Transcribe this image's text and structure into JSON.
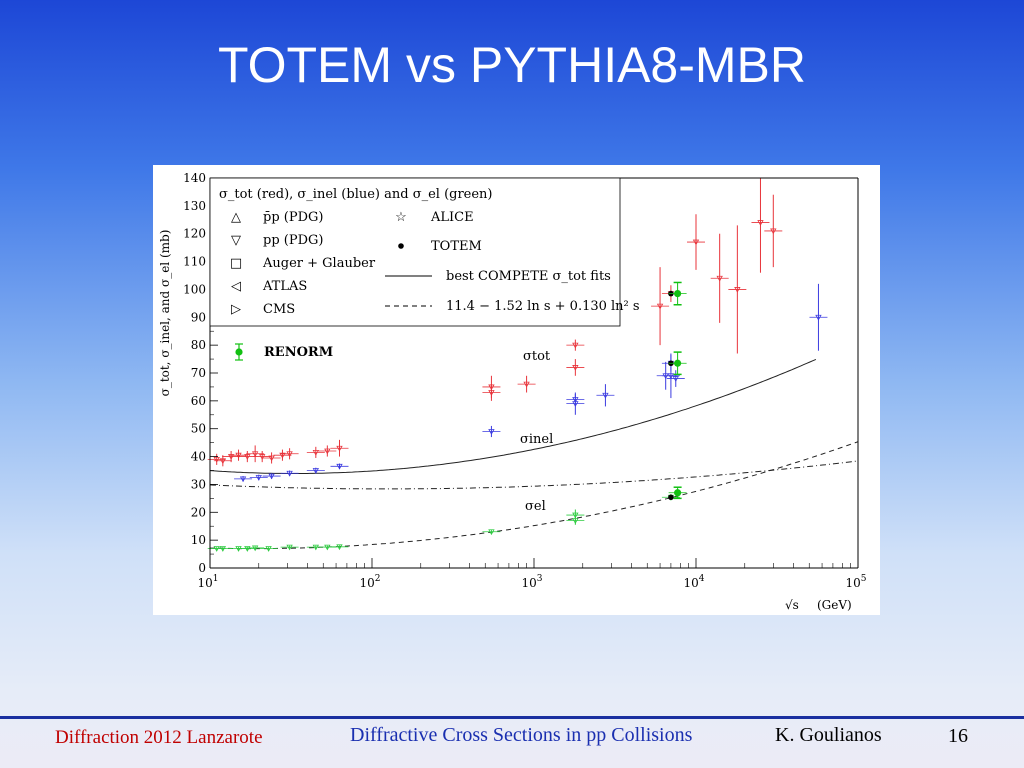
{
  "slide": {
    "title": "TOTEM vs PYTHIA8-MBR",
    "footer_left": "Diffraction 2012 Lanzarote",
    "footer_center": "Diffractive Cross Sections in pp Collisions",
    "footer_author": "K. Goulianos",
    "page_number": "16"
  },
  "chart_data": {
    "type": "scatter",
    "xscale": "log",
    "xlim": [
      10,
      100000
    ],
    "ylim": [
      0,
      140
    ],
    "xlabel_text": "√s",
    "xlabel_unit": "(GeV)",
    "ylabel": "σ_tot, σ_inel, and σ_el (mb)",
    "yticks": [
      "0",
      "10",
      "20",
      "30",
      "40",
      "50",
      "60",
      "70",
      "80",
      "90",
      "100",
      "110",
      "120",
      "130",
      "140"
    ],
    "xticks": [
      {
        "base": "10",
        "exp": "1"
      },
      {
        "base": "10",
        "exp": "2"
      },
      {
        "base": "10",
        "exp": "3"
      },
      {
        "base": "10",
        "exp": "4"
      },
      {
        "base": "10",
        "exp": "5"
      }
    ],
    "legend": {
      "title": "σ_tot (red), σ_inel (blue) and σ_el (green)",
      "entries": [
        {
          "marker": "△",
          "label": "p̄p (PDG)"
        },
        {
          "marker": "▽",
          "label": "pp (PDG)"
        },
        {
          "marker": "□",
          "label": "Auger + Glauber"
        },
        {
          "marker": "◁",
          "label": "ATLAS"
        },
        {
          "marker": "▷",
          "label": "CMS"
        },
        {
          "marker": "☆",
          "label": "ALICE"
        },
        {
          "marker": "●",
          "label": "TOTEM"
        },
        {
          "marker": "line",
          "label": "best COMPETE σ_tot fits"
        },
        {
          "marker": "dash",
          "label": "11.4 − 1.52 ln s + 0.130 ln² s"
        }
      ],
      "placement": "top-left"
    },
    "renorm_label": "RENORM",
    "curve_labels": {
      "tot": "σtot",
      "inel": "σinel",
      "el": "σel"
    },
    "colors": {
      "tot": "#e8333a",
      "inel": "#3b3be0",
      "el": "#2ecc40",
      "renorm": "#12c012",
      "curve": "#222222"
    },
    "series": [
      {
        "name": "σ_tot",
        "points": [
          {
            "x": 11,
            "y": 39,
            "err": 2
          },
          {
            "x": 12,
            "y": 38.5,
            "err": 2
          },
          {
            "x": 13.5,
            "y": 40,
            "err": 2
          },
          {
            "x": 15,
            "y": 40.5,
            "err": 2
          },
          {
            "x": 17,
            "y": 40,
            "err": 2
          },
          {
            "x": 19,
            "y": 41,
            "err": 3
          },
          {
            "x": 21,
            "y": 40,
            "err": 2
          },
          {
            "x": 24,
            "y": 39.5,
            "err": 2
          },
          {
            "x": 28,
            "y": 40.5,
            "err": 2
          },
          {
            "x": 31,
            "y": 41,
            "err": 2
          },
          {
            "x": 45,
            "y": 41.5,
            "err": 2
          },
          {
            "x": 53,
            "y": 42,
            "err": 2
          },
          {
            "x": 63,
            "y": 43,
            "err": 3
          },
          {
            "x": 546,
            "y": 63,
            "err": 3
          },
          {
            "x": 546,
            "y": 65,
            "err": 4
          },
          {
            "x": 900,
            "y": 66,
            "err": 3
          },
          {
            "x": 1800,
            "y": 72,
            "err": 3
          },
          {
            "x": 1800,
            "y": 80,
            "err": 2
          },
          {
            "x": 6000,
            "y": 94,
            "err": 14
          },
          {
            "x": 7000,
            "y": 98.5,
            "err": 3
          },
          {
            "x": 10000,
            "y": 117,
            "err": 10
          },
          {
            "x": 14000,
            "y": 104,
            "err": 16
          },
          {
            "x": 18000,
            "y": 100,
            "err": 23
          },
          {
            "x": 25000,
            "y": 124,
            "err": 18
          },
          {
            "x": 30000,
            "y": 121,
            "err": 13
          }
        ]
      },
      {
        "name": "σ_inel",
        "points": [
          {
            "x": 16,
            "y": 32,
            "err": 1
          },
          {
            "x": 20,
            "y": 32.5,
            "err": 1
          },
          {
            "x": 24,
            "y": 33,
            "err": 1
          },
          {
            "x": 31,
            "y": 34,
            "err": 1
          },
          {
            "x": 45,
            "y": 35,
            "err": 1
          },
          {
            "x": 63,
            "y": 36.5,
            "err": 1
          },
          {
            "x": 546,
            "y": 49,
            "err": 2
          },
          {
            "x": 1800,
            "y": 59,
            "err": 4
          },
          {
            "x": 1800,
            "y": 60.5,
            "err": 2
          },
          {
            "x": 2760,
            "y": 62,
            "err": 4
          },
          {
            "x": 6500,
            "y": 69,
            "err": 5
          },
          {
            "x": 7000,
            "y": 69,
            "err": 8
          },
          {
            "x": 7000,
            "y": 73.5,
            "err": 3
          },
          {
            "x": 7500,
            "y": 68,
            "err": 3
          },
          {
            "x": 57000,
            "y": 90,
            "err": 12
          }
        ]
      },
      {
        "name": "σ_el",
        "points": [
          {
            "x": 11,
            "y": 7,
            "err": 0.5
          },
          {
            "x": 12,
            "y": 7,
            "err": 0.5
          },
          {
            "x": 15,
            "y": 7,
            "err": 0.5
          },
          {
            "x": 17,
            "y": 7,
            "err": 0.5
          },
          {
            "x": 19,
            "y": 7.2,
            "err": 0.5
          },
          {
            "x": 23,
            "y": 7,
            "err": 0.5
          },
          {
            "x": 31,
            "y": 7.5,
            "err": 0.5
          },
          {
            "x": 45,
            "y": 7.5,
            "err": 0.5
          },
          {
            "x": 53,
            "y": 7.5,
            "err": 0.5
          },
          {
            "x": 63,
            "y": 7.6,
            "err": 0.5
          },
          {
            "x": 546,
            "y": 13,
            "err": 0.6
          },
          {
            "x": 1800,
            "y": 19,
            "err": 2
          },
          {
            "x": 1800,
            "y": 17,
            "err": 1.5
          },
          {
            "x": 7000,
            "y": 25.4,
            "err": 1.1
          }
        ]
      },
      {
        "name": "TOTEM",
        "points": [
          {
            "x": 7000,
            "y": 98.5
          },
          {
            "x": 7000,
            "y": 73.5
          },
          {
            "x": 7000,
            "y": 25.4
          }
        ]
      },
      {
        "name": "RENORM",
        "points": [
          {
            "x": 7700,
            "y": 98.5,
            "err": 4
          },
          {
            "x": 7700,
            "y": 73.5,
            "err": 4
          },
          {
            "x": 7700,
            "y": 27,
            "err": 2
          }
        ]
      }
    ]
  }
}
